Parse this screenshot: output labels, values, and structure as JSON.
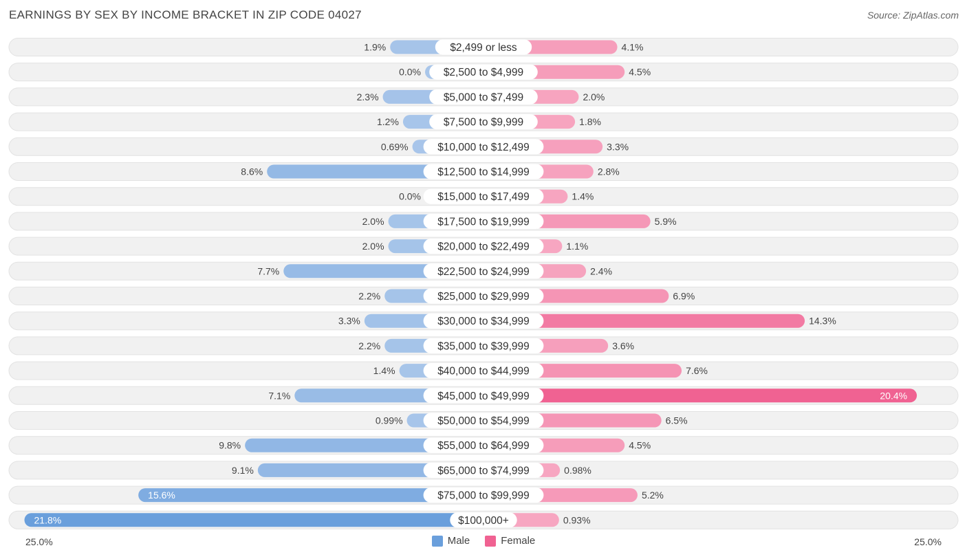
{
  "title": "EARNINGS BY SEX BY INCOME BRACKET IN ZIP CODE 04027",
  "source": "Source: ZipAtlas.com",
  "colors": {
    "male": "#6a9fdc",
    "male_light": "#a9c6ea",
    "female": "#f06292",
    "female_light": "#f7a8c2",
    "row_bg": "#f1f1f1"
  },
  "legend": {
    "male_label": "Male",
    "female_label": "Female"
  },
  "axis": {
    "left_label": "25.0%",
    "right_label": "25.0%"
  },
  "chart_data": {
    "type": "bar",
    "orientation": "horizontal-diverging",
    "title": "EARNINGS BY SEX BY INCOME BRACKET IN ZIP CODE 04027",
    "xlim": [
      -25,
      25
    ],
    "categories": [
      "$2,499 or less",
      "$2,500 to $4,999",
      "$5,000 to $7,499",
      "$7,500 to $9,999",
      "$10,000 to $12,499",
      "$12,500 to $14,999",
      "$15,000 to $17,499",
      "$17,500 to $19,999",
      "$20,000 to $22,499",
      "$22,500 to $24,999",
      "$25,000 to $29,999",
      "$30,000 to $34,999",
      "$35,000 to $39,999",
      "$40,000 to $44,999",
      "$45,000 to $49,999",
      "$50,000 to $54,999",
      "$55,000 to $64,999",
      "$65,000 to $74,999",
      "$75,000 to $99,999",
      "$100,000+"
    ],
    "series": [
      {
        "name": "Male",
        "values": [
          1.9,
          0.0,
          2.3,
          1.2,
          0.69,
          8.6,
          0.0,
          2.0,
          2.0,
          7.7,
          2.2,
          3.3,
          2.2,
          1.4,
          7.1,
          0.99,
          9.8,
          9.1,
          15.6,
          21.8
        ],
        "labels": [
          "1.9%",
          "0.0%",
          "2.3%",
          "1.2%",
          "0.69%",
          "8.6%",
          "0.0%",
          "2.0%",
          "2.0%",
          "7.7%",
          "2.2%",
          "3.3%",
          "2.2%",
          "1.4%",
          "7.1%",
          "0.99%",
          "9.8%",
          "9.1%",
          "15.6%",
          "21.8%"
        ]
      },
      {
        "name": "Female",
        "values": [
          4.1,
          4.5,
          2.0,
          1.8,
          3.3,
          2.8,
          1.4,
          5.9,
          1.1,
          2.4,
          6.9,
          14.3,
          3.6,
          7.6,
          20.4,
          6.5,
          4.5,
          0.98,
          5.2,
          0.93
        ],
        "labels": [
          "4.1%",
          "4.5%",
          "2.0%",
          "1.8%",
          "3.3%",
          "2.8%",
          "1.4%",
          "5.9%",
          "1.1%",
          "2.4%",
          "6.9%",
          "14.3%",
          "3.6%",
          "7.6%",
          "20.4%",
          "6.5%",
          "4.5%",
          "0.98%",
          "5.2%",
          "0.93%"
        ]
      }
    ],
    "xlabel": "",
    "ylabel": "",
    "legend_position": "bottom-center"
  }
}
